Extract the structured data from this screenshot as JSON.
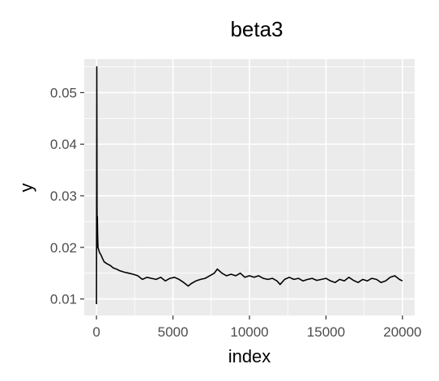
{
  "chart_data": {
    "type": "line",
    "title": "beta3",
    "xlabel": "index",
    "ylabel": "y",
    "xlim": [
      -800,
      20800
    ],
    "ylim": [
      0.0068,
      0.0565
    ],
    "x_ticks": [
      0,
      5000,
      10000,
      15000,
      20000
    ],
    "x_tick_labels": [
      "0",
      "5000",
      "10000",
      "15000",
      "20000"
    ],
    "y_ticks": [
      0.01,
      0.02,
      0.03,
      0.04,
      0.05
    ],
    "y_tick_labels": [
      "0.01",
      "0.02",
      "0.03",
      "0.04",
      "0.05"
    ],
    "grid": true,
    "legend": "none",
    "colors": {
      "panel": "#ebebeb",
      "grid": "#ffffff",
      "line": "#000000",
      "tick_text": "#4d4d4d"
    },
    "series": [
      {
        "x": [
          1,
          20,
          40,
          60,
          80,
          100,
          150,
          200,
          300,
          400,
          500,
          700,
          900,
          1100,
          1300,
          1500,
          1800,
          2100,
          2400,
          2700,
          3000,
          3300,
          3600,
          3900,
          4200,
          4500,
          4800,
          5100,
          5400,
          5700,
          6000,
          6200,
          6500,
          6800,
          7100,
          7400,
          7700,
          7900,
          8200,
          8500,
          8800,
          9100,
          9400,
          9700,
          10000,
          10300,
          10600,
          10900,
          11200,
          11500,
          11800,
          12000,
          12300,
          12600,
          12900,
          13200,
          13500,
          13800,
          14100,
          14400,
          14700,
          15000,
          15300,
          15600,
          15900,
          16200,
          16500,
          16800,
          17100,
          17400,
          17700,
          18000,
          18300,
          18600,
          18900,
          19200,
          19500,
          19800,
          20000
        ],
        "y": [
          0.009,
          0.055,
          0.02,
          0.026,
          0.022,
          0.02,
          0.0195,
          0.019,
          0.0185,
          0.0178,
          0.0172,
          0.0168,
          0.0165,
          0.016,
          0.0158,
          0.0155,
          0.0152,
          0.015,
          0.0148,
          0.0145,
          0.0138,
          0.0142,
          0.014,
          0.0138,
          0.0142,
          0.0135,
          0.014,
          0.0142,
          0.0138,
          0.0132,
          0.0125,
          0.013,
          0.0135,
          0.0138,
          0.014,
          0.0145,
          0.015,
          0.0158,
          0.015,
          0.0145,
          0.0148,
          0.0145,
          0.015,
          0.0142,
          0.0145,
          0.0142,
          0.0145,
          0.014,
          0.0138,
          0.014,
          0.0135,
          0.0128,
          0.0138,
          0.0142,
          0.0138,
          0.014,
          0.0135,
          0.0138,
          0.014,
          0.0136,
          0.0138,
          0.014,
          0.0135,
          0.0132,
          0.0138,
          0.0135,
          0.0142,
          0.0136,
          0.0132,
          0.0138,
          0.0135,
          0.014,
          0.0138,
          0.0132,
          0.0135,
          0.0142,
          0.0145,
          0.0138,
          0.0135
        ]
      }
    ]
  }
}
